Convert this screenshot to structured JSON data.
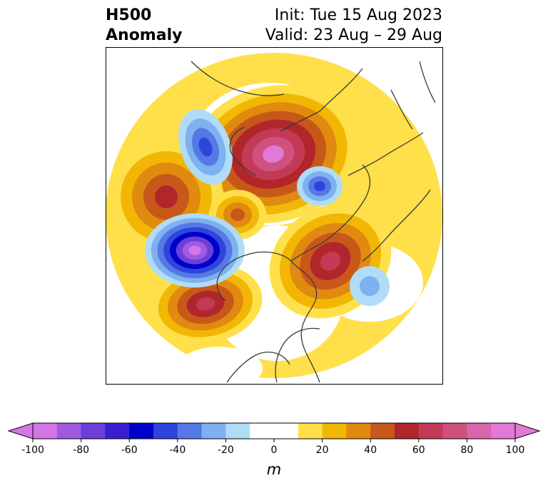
{
  "title": {
    "left_line1": "H500",
    "left_line2": "Anomaly",
    "right_line1": "Init: Tue 15 Aug 2023",
    "right_line2": "Valid: 23 Aug – 29 Aug"
  },
  "colorbar": {
    "unit": "m",
    "ticks": [
      "-100",
      "-80",
      "-60",
      "-40",
      "-20",
      "0",
      "20",
      "40",
      "60",
      "80",
      "100"
    ],
    "colors": [
      "#d676e6",
      "#a05ae0",
      "#6b3fd8",
      "#3a1fd0",
      "#0000cc",
      "#2e45dc",
      "#5578e6",
      "#7db1f0",
      "#b0dcf8",
      "#ffffff",
      "#ffffff",
      "#ffe04a",
      "#f2b705",
      "#e08a10",
      "#c8581a",
      "#b0262a",
      "#c23a55",
      "#d0507e",
      "#d865ae",
      "#e279d6"
    ]
  },
  "map": {
    "projection": "north polar stereographic",
    "positive_palette": [
      "#ffe04a",
      "#f2b705",
      "#e08a10",
      "#c8581a",
      "#b0262a",
      "#c23a55",
      "#d0507e",
      "#e07ad8"
    ],
    "negative_palette": [
      "#b0dcf8",
      "#7db1f0",
      "#5578e6",
      "#2e45dc",
      "#0000cc",
      "#6b3fd8",
      "#a05ae0",
      "#d676e6"
    ],
    "coastline_color": "#3a3a3a"
  }
}
